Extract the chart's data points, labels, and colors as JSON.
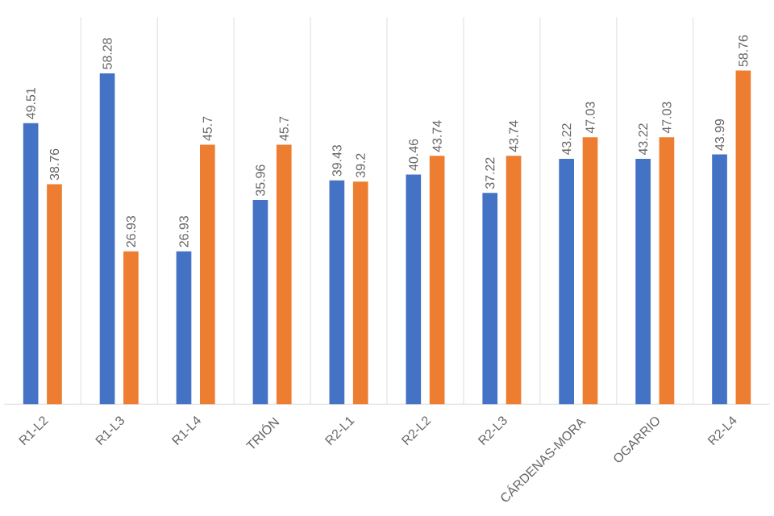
{
  "chart_data": {
    "type": "bar",
    "categories": [
      "R1-L2",
      "R1-L3",
      "R1-L4",
      "TRIÓN",
      "R2-L1",
      "R2-L2",
      "R2-L3",
      "CÁRDENAS-MORA",
      "OGARRIO",
      "R2-L4"
    ],
    "series": [
      {
        "color": "#4472c4",
        "values": [
          49.51,
          58.28,
          26.93,
          35.96,
          39.43,
          40.46,
          37.22,
          43.22,
          43.22,
          43.99
        ]
      },
      {
        "color": "#ed7d31",
        "values": [
          38.76,
          26.93,
          45.7,
          45.7,
          39.2,
          43.74,
          43.74,
          47.03,
          47.03,
          58.76
        ]
      }
    ],
    "data_labels": true,
    "grid": "x"
  }
}
